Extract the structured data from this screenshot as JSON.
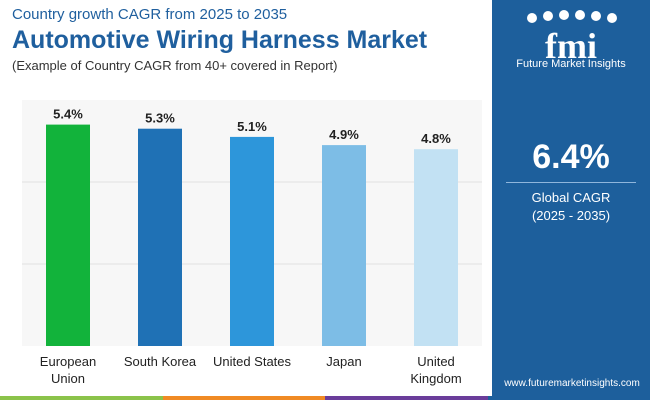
{
  "header": {
    "supertitle": "Country growth CAGR from 2025 to 2035",
    "title": "Automotive Wiring Harness Market",
    "subtitle": "(Example of Country CAGR from 40+ covered in Report)"
  },
  "chart_data": {
    "type": "bar",
    "categories": [
      [
        "European",
        "Union"
      ],
      [
        "South Korea"
      ],
      [
        "United States"
      ],
      [
        "Japan"
      ],
      [
        "United",
        "Kingdom"
      ]
    ],
    "values": [
      5.4,
      5.3,
      5.1,
      4.9,
      4.8
    ],
    "value_labels": [
      "5.4%",
      "5.3%",
      "5.1%",
      "4.9%",
      "4.8%"
    ],
    "bar_colors": [
      "#12b33b",
      "#1f71b5",
      "#2d96da",
      "#7dbde6",
      "#c2e1f3"
    ],
    "ylim": [
      0,
      6
    ],
    "grid": true
  },
  "side_panel": {
    "logo_text": "Future Market Insights",
    "stat_value": "6.4%",
    "stat_label_line1": "Global CAGR",
    "stat_label_line2": "(2025 - 2035)"
  },
  "footer": {
    "website": "www.futuremarketinsights.com",
    "bar_colors": [
      "#8bc34a",
      "#f08a24",
      "#6a3d9a",
      "#1d5f9c"
    ]
  },
  "colors": {
    "title": "#1f5f9e",
    "panel": "#1d5f9c"
  }
}
